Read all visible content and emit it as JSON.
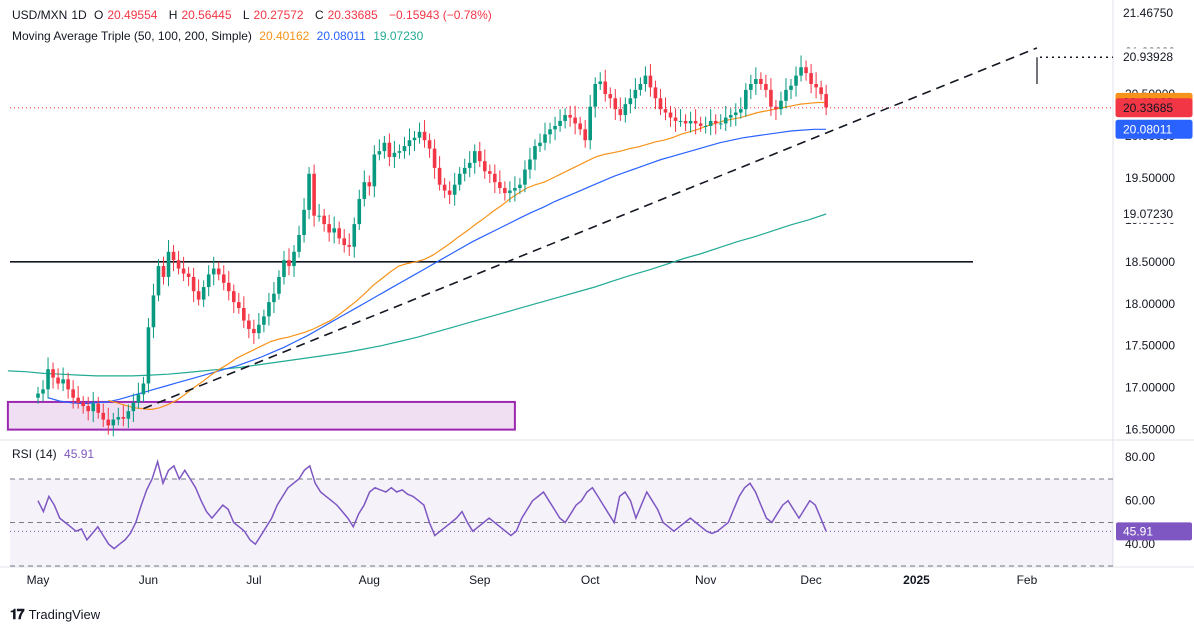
{
  "header": {
    "symbol": "USD/MXN",
    "interval": "1D",
    "o_label": "O",
    "o_val": "20.49554",
    "h_label": "H",
    "h_val": "20.56445",
    "l_label": "L",
    "l_val": "20.27572",
    "c_label": "C",
    "c_val": "20.33685",
    "change": "−0.15943 (−0.78%)"
  },
  "ma_legend": {
    "label": "Moving Average Triple (50, 100, 200, Simple)",
    "v50": "20.40162",
    "v100": "20.08011",
    "v200": "19.07230"
  },
  "rsi_legend": {
    "label": "RSI (14)",
    "value": "45.91"
  },
  "footer": {
    "brand": "TradingView"
  },
  "colors": {
    "up": "#089981",
    "down": "#f23645",
    "ma50": "#f7931a",
    "ma100": "#2962ff",
    "ma200": "#22ab94",
    "rsi": "#7e57c2",
    "zone": "#9c27b0"
  },
  "chart_data": {
    "type": "candlestick",
    "symbol": "USD/MXN",
    "price_axis": {
      "ticks": [
        "16.50000",
        "17.00000",
        "17.50000",
        "18.00000",
        "18.50000",
        "19.00000",
        "19.50000",
        "20.00000",
        "20.50000",
        "21.00000",
        "21.46750"
      ],
      "tick_values": [
        16.5,
        17.0,
        17.5,
        18.0,
        18.5,
        19.0,
        19.5,
        20.0,
        20.5,
        21.0,
        21.4675
      ],
      "range": [
        16.4,
        21.55
      ]
    },
    "badges": [
      {
        "text": "21.46750",
        "value": 21.4675,
        "style": "plain"
      },
      {
        "text": "20.93928",
        "value": 20.93928,
        "style": "plain"
      },
      {
        "text": "20.40162",
        "value": 20.40162,
        "style": "ma50"
      },
      {
        "text": "20.33685",
        "value": 20.33685,
        "style": "down"
      },
      {
        "text": "20.08011",
        "value": 20.08011,
        "style": "ma100"
      },
      {
        "text": "19.07230",
        "value": 19.0723,
        "style": "ma200"
      }
    ],
    "time_axis": [
      "May",
      "Jun",
      "Jul",
      "Aug",
      "Sep",
      "Oct",
      "Nov",
      "Dec",
      "2025",
      "Feb"
    ],
    "time_axis_day_index": [
      0,
      22,
      43,
      66,
      88,
      110,
      133,
      154,
      175,
      197
    ],
    "horizontal_line": 18.5,
    "resistance_dotted": 20.93928,
    "last_close_line": 20.33685,
    "support_zone": {
      "low": 16.5,
      "high": 16.83,
      "from_day": -6,
      "to_day": 95
    },
    "trendline": {
      "from": {
        "day": 21,
        "price": 16.75
      },
      "to": {
        "day": 199,
        "price": 21.05
      }
    },
    "closes": [
      16.93,
      16.98,
      17.22,
      17.12,
      17.05,
      17.1,
      16.98,
      16.88,
      16.82,
      16.78,
      16.72,
      16.81,
      16.7,
      16.62,
      16.55,
      16.62,
      16.65,
      16.63,
      16.72,
      16.82,
      16.92,
      17.05,
      17.72,
      18.1,
      18.45,
      18.32,
      18.62,
      18.52,
      18.42,
      18.36,
      18.32,
      18.15,
      18.05,
      18.2,
      18.35,
      18.42,
      18.35,
      18.25,
      18.15,
      18.02,
      17.95,
      17.8,
      17.7,
      17.65,
      17.75,
      17.85,
      18.02,
      18.12,
      18.32,
      18.52,
      18.45,
      18.62,
      18.82,
      19.12,
      19.55,
      19.05,
      19.05,
      18.95,
      18.85,
      18.9,
      18.78,
      18.7,
      18.68,
      18.95,
      19.25,
      19.45,
      19.4,
      19.78,
      19.82,
      19.92,
      19.75,
      19.8,
      19.82,
      19.88,
      19.95,
      19.98,
      20.05,
      19.95,
      19.85,
      19.62,
      19.42,
      19.35,
      19.3,
      19.42,
      19.55,
      19.62,
      19.68,
      19.82,
      19.7,
      19.58,
      19.55,
      19.45,
      19.38,
      19.32,
      19.35,
      19.38,
      19.42,
      19.6,
      19.72,
      19.88,
      19.92,
      20.02,
      20.08,
      20.12,
      20.18,
      20.25,
      20.22,
      20.15,
      20.08,
      19.95,
      20.35,
      20.62,
      20.65,
      20.5,
      20.45,
      20.32,
      20.25,
      20.38,
      20.45,
      20.55,
      20.62,
      20.72,
      20.58,
      20.45,
      20.32,
      20.28,
      20.22,
      20.18,
      20.18,
      20.15,
      20.18,
      20.15,
      20.12,
      20.12,
      20.18,
      20.15,
      20.15,
      20.22,
      20.25,
      20.28,
      20.32,
      20.55,
      20.62,
      20.68,
      20.62,
      20.55,
      20.35,
      20.32,
      20.42,
      20.55,
      20.6,
      20.72,
      20.82,
      20.75,
      20.62,
      20.58,
      20.5,
      20.34
    ],
    "ma50": [
      16.85,
      16.82,
      16.79,
      16.76,
      16.75,
      16.74,
      16.76,
      16.8,
      16.85,
      16.92,
      17.0,
      17.07,
      17.15,
      17.22,
      17.28,
      17.35,
      17.4,
      17.45,
      17.5,
      17.55,
      17.58,
      17.6,
      17.63,
      17.66,
      17.7,
      17.75,
      17.8,
      17.87,
      17.95,
      18.03,
      18.12,
      18.22,
      18.3,
      18.38,
      18.45,
      18.48,
      18.5,
      18.53,
      18.58,
      18.65,
      18.72,
      18.8,
      18.87,
      18.95,
      19.02,
      19.1,
      19.17,
      19.25,
      19.32,
      19.38,
      19.42,
      19.45,
      19.5,
      19.55,
      19.6,
      19.65,
      19.7,
      19.75,
      19.78,
      19.8,
      19.82,
      19.85,
      19.87,
      19.9,
      19.93,
      19.95,
      19.98,
      20.02,
      20.05,
      20.08,
      20.12,
      20.15,
      20.18,
      20.2,
      20.22,
      20.25,
      20.28,
      20.3,
      20.32,
      20.34,
      20.36,
      20.38,
      20.39,
      20.4,
      20.4
    ],
    "ma50_start_day": 14,
    "ma100": [
      16.88,
      16.84,
      16.82,
      16.81,
      16.82,
      16.83,
      16.86,
      16.9,
      16.94,
      16.98,
      17.02,
      17.06,
      17.1,
      17.14,
      17.18,
      17.22,
      17.26,
      17.31,
      17.36,
      17.42,
      17.48,
      17.55,
      17.62,
      17.7,
      17.78,
      17.86,
      17.94,
      18.02,
      18.1,
      18.18,
      18.26,
      18.34,
      18.42,
      18.5,
      18.58,
      18.66,
      18.74,
      18.81,
      18.88,
      18.95,
      19.02,
      19.09,
      19.15,
      19.22,
      19.28,
      19.34,
      19.4,
      19.46,
      19.52,
      19.57,
      19.62,
      19.67,
      19.72,
      19.76,
      19.8,
      19.84,
      19.88,
      19.92,
      19.95,
      19.98,
      20.0,
      20.02,
      20.04,
      20.06,
      20.07,
      20.08,
      20.08
    ],
    "ma100_start_day": 2,
    "ma200": [
      17.2,
      17.19,
      17.17,
      17.16,
      17.15,
      17.14,
      17.14,
      17.14,
      17.15,
      17.16,
      17.18,
      17.2,
      17.22,
      17.24,
      17.27,
      17.3,
      17.33,
      17.36,
      17.39,
      17.42,
      17.46,
      17.5,
      17.55,
      17.6,
      17.66,
      17.72,
      17.78,
      17.84,
      17.9,
      17.96,
      18.02,
      18.08,
      18.14,
      18.2,
      18.27,
      18.34,
      18.4,
      18.47,
      18.54,
      18.6,
      18.67,
      18.74,
      18.8,
      18.87,
      18.94,
      19.0,
      19.07
    ],
    "ma200_start_day": -6,
    "rsi": {
      "label": "RSI (14)",
      "axis_ticks": [
        "40.00",
        "60.00",
        "80.00"
      ],
      "tick_values": [
        40,
        60,
        80
      ],
      "range": [
        30,
        87
      ],
      "band": [
        30,
        70
      ],
      "midline": 50,
      "last": 45.91,
      "values": [
        60,
        55,
        62,
        58,
        52,
        50,
        48,
        46,
        47,
        42,
        45,
        48,
        44,
        40,
        38,
        40,
        42,
        45,
        50,
        58,
        65,
        70,
        78,
        68,
        74,
        76,
        70,
        74,
        70,
        66,
        60,
        55,
        52,
        55,
        58,
        56,
        50,
        48,
        46,
        42,
        40,
        44,
        48,
        52,
        58,
        62,
        66,
        68,
        70,
        74,
        76,
        68,
        64,
        62,
        60,
        58,
        55,
        52,
        48,
        54,
        58,
        64,
        66,
        65,
        64,
        66,
        64,
        65,
        63,
        62,
        60,
        58,
        50,
        44,
        46,
        48,
        50,
        52,
        55,
        50,
        46,
        48,
        50,
        52,
        50,
        48,
        46,
        44,
        46,
        52,
        56,
        60,
        62,
        64,
        60,
        56,
        52,
        50,
        54,
        58,
        60,
        64,
        66,
        62,
        58,
        54,
        50,
        62,
        64,
        60,
        52,
        58,
        64,
        60,
        56,
        50,
        48,
        46,
        48,
        50,
        52,
        50,
        48,
        46,
        45,
        46,
        48,
        50,
        56,
        62,
        66,
        68,
        64,
        58,
        52,
        50,
        54,
        58,
        60,
        56,
        52,
        56,
        60,
        58,
        52,
        46
      ]
    }
  }
}
